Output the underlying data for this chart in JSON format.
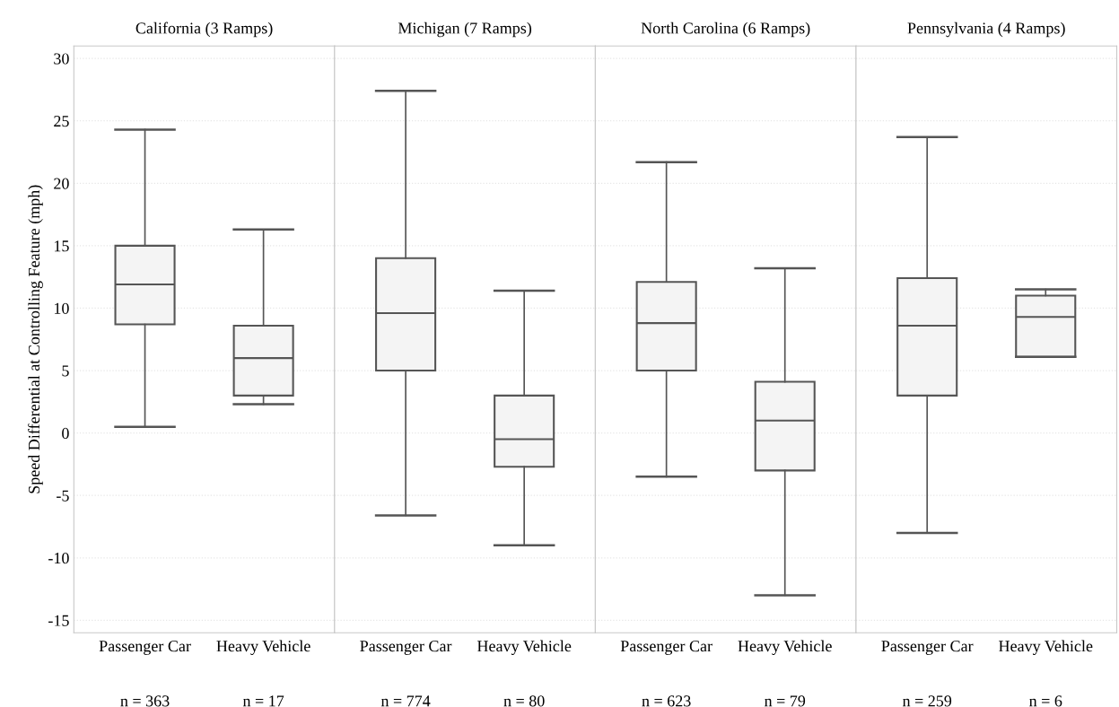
{
  "chart_data": [
    {
      "type": "box",
      "title": "California (3 Ramps)",
      "ylabel": "Speed Differential at Controlling Feature (mph)",
      "categories": [
        "Passenger Car",
        "Heavy Vehicle"
      ],
      "color": "#f4f4f4",
      "boxes": [
        {
          "low": 0.5,
          "q1": 8.7,
          "median": 11.9,
          "q3": 15.0,
          "high": 24.3
        },
        {
          "low": 2.3,
          "q1": 3.0,
          "median": 6.0,
          "q3": 8.6,
          "high": 16.3
        }
      ],
      "annotations": [
        "n = 363",
        "n = 17"
      ],
      "ylim": [
        -16,
        31
      ],
      "yticks": [
        -15,
        -10,
        -5,
        0,
        5,
        10,
        15,
        20,
        25,
        30
      ],
      "grid": "y"
    },
    {
      "type": "box",
      "title": "Michigan (7 Ramps)",
      "categories": [
        "Passenger Car",
        "Heavy Vehicle"
      ],
      "color": "#f4f4f4",
      "boxes": [
        {
          "low": -6.6,
          "q1": 5.0,
          "median": 9.6,
          "q3": 14.0,
          "high": 27.4
        },
        {
          "low": -9.0,
          "q1": -2.7,
          "median": -0.5,
          "q3": 3.0,
          "high": 11.4
        }
      ],
      "annotations": [
        "n = 774",
        "n = 80"
      ],
      "ylim": [
        -16,
        31
      ],
      "yticks": [
        -15,
        -10,
        -5,
        0,
        5,
        10,
        15,
        20,
        25,
        30
      ],
      "grid": "y",
      "tick_labels": "x"
    },
    {
      "type": "box",
      "title": "North Carolina (6 Ramps)",
      "categories": [
        "Passenger Car",
        "Heavy Vehicle"
      ],
      "color": "#f4f4f4",
      "boxes": [
        {
          "low": -3.5,
          "q1": 5.0,
          "median": 8.8,
          "q3": 12.1,
          "high": 21.7
        },
        {
          "low": -13.0,
          "q1": -3.0,
          "median": 1.0,
          "q3": 4.1,
          "high": 13.2
        }
      ],
      "annotations": [
        "n = 623",
        "n = 79"
      ],
      "ylim": [
        -16,
        31
      ],
      "yticks": [
        -15,
        -10,
        -5,
        0,
        5,
        10,
        15,
        20,
        25,
        30
      ],
      "grid": "y",
      "tick_labels": "x"
    },
    {
      "type": "box",
      "title": "Pennsylvania (4 Ramps)",
      "categories": [
        "Passenger Car",
        "Heavy Vehicle"
      ],
      "color": "#f4f4f4",
      "boxes": [
        {
          "low": -8.0,
          "q1": 3.0,
          "median": 8.6,
          "q3": 12.4,
          "high": 23.7
        },
        {
          "low": 6.1,
          "q1": 6.1,
          "median": 9.3,
          "q3": 11.0,
          "high": 11.5
        }
      ],
      "annotations": [
        "n = 259",
        "n = 6"
      ],
      "ylim": [
        -16,
        31
      ],
      "yticks": [
        -15,
        -10,
        -5,
        0,
        5,
        10,
        15,
        20,
        25,
        30
      ],
      "grid": "y",
      "tick_labels": "x"
    }
  ]
}
